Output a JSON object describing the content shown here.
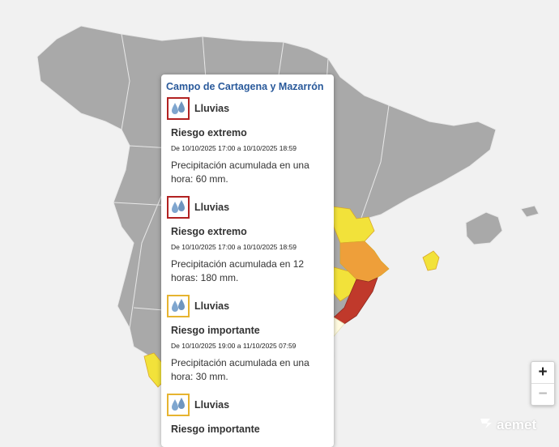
{
  "map": {
    "colors": {
      "sea": "#f1f1f1",
      "land_no_warning": "#a9a9a9",
      "border": "#e8e8e8",
      "warning_yellow": "#f2e23a",
      "warning_orange": "#ee9f3a",
      "warning_red": "#c0392b",
      "selected_zone": "#fffbe0"
    },
    "logo_text": "aemet"
  },
  "popup": {
    "title": "Campo de Cartagena y Mazarrón",
    "alerts": [
      {
        "icon": "rain-drops-icon",
        "phenomenon": "Lluvias",
        "level": "Riesgo extremo",
        "level_color": "#b22222",
        "period": "De 10/10/2025 17:00 a 10/10/2025 18:59",
        "description": "Precipitación acumulada en una hora: 60 mm."
      },
      {
        "icon": "rain-drops-icon",
        "phenomenon": "Lluvias",
        "level": "Riesgo extremo",
        "level_color": "#b22222",
        "period": "De 10/10/2025 17:00 a 10/10/2025 18:59",
        "description": "Precipitación acumulada en 12 horas: 180 mm."
      },
      {
        "icon": "rain-drops-icon",
        "phenomenon": "Lluvias",
        "level": "Riesgo importante",
        "level_color": "#e6b430",
        "period": "De 10/10/2025 19:00 a 11/10/2025 07:59",
        "description": "Precipitación acumulada en una hora: 30 mm."
      },
      {
        "icon": "rain-drops-icon",
        "phenomenon": "Lluvias",
        "level": "Riesgo importante",
        "level_color": "#e6b430"
      }
    ]
  },
  "zoom": {
    "in_label": "+",
    "out_label": "−"
  }
}
